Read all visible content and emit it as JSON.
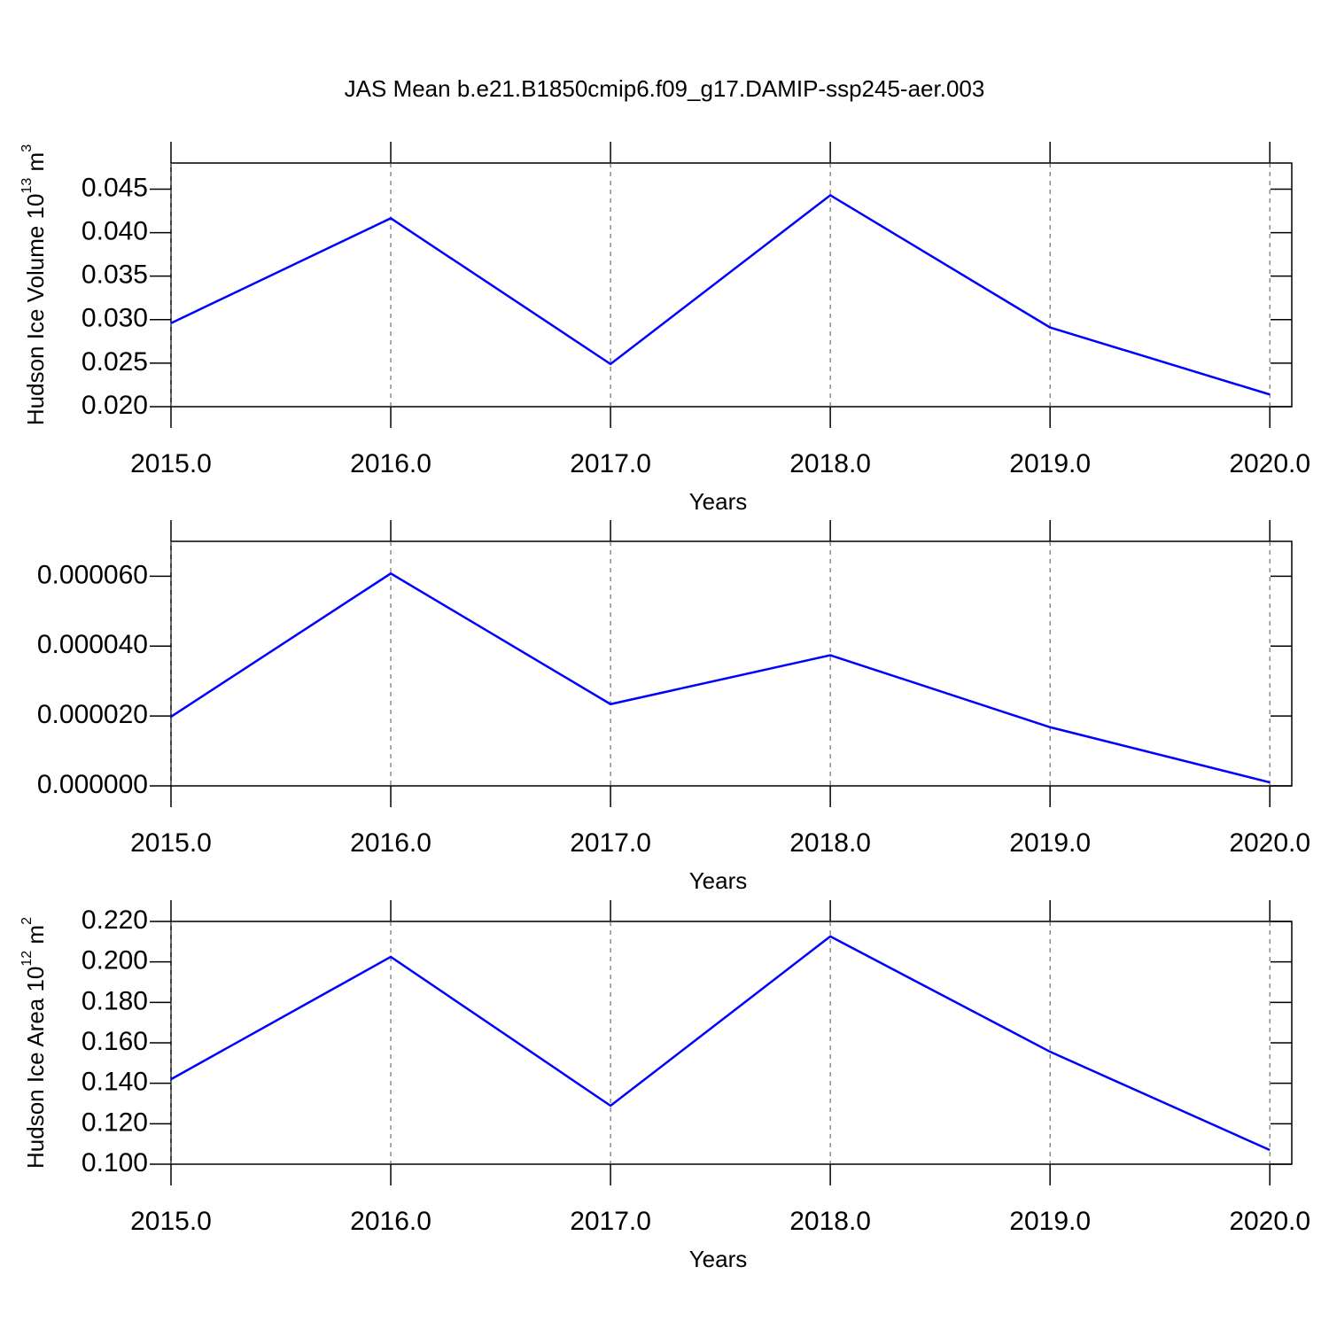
{
  "chart_data": [
    {
      "type": "line",
      "title": "JAS Mean b.e21.B1850cmip6.f09_g17.DAMIP-ssp245-aer.003",
      "y_label": {
        "text": "Hudson Ice Volume 10",
        "exponent": "13",
        "unit": " m",
        "unit_exponent": "3"
      },
      "x_label": "Years",
      "x": [
        2015,
        2016,
        2017,
        2018,
        2019,
        2020
      ],
      "values": [
        0.0296,
        0.04165,
        0.0249,
        0.0443,
        0.0291,
        0.0214
      ],
      "color": "#0000ff",
      "xlim": [
        2015,
        2020.1
      ],
      "xticks": [
        {
          "value": 2015,
          "label": "2015.0"
        },
        {
          "value": 2016,
          "label": "2016.0"
        },
        {
          "value": 2017,
          "label": "2017.0"
        },
        {
          "value": 2018,
          "label": "2018.0"
        },
        {
          "value": 2019,
          "label": "2019.0"
        },
        {
          "value": 2020,
          "label": "2020.0"
        }
      ],
      "ylim": [
        0.02,
        0.048
      ],
      "yticks": [
        {
          "value": 0.02,
          "label": "0.020"
        },
        0.025,
        {
          "value": 0.03,
          "label": "0.030"
        },
        0.035,
        {
          "value": 0.04,
          "label": "0.040"
        },
        0.045
      ],
      "xgrid": true
    },
    {
      "type": "line",
      "x_label": "Years",
      "x": [
        2015,
        2016,
        2017,
        2018,
        2019,
        2020
      ],
      "values": [
        1.98e-05,
        6.08e-05,
        2.34e-05,
        3.74e-05,
        1.68e-05,
        1e-06
      ],
      "color": "#0000ff",
      "xlim": [
        2015,
        2020.1
      ],
      "xticks": [
        {
          "value": 2015,
          "label": "2015.0"
        },
        {
          "value": 2016,
          "label": "2016.0"
        },
        {
          "value": 2017,
          "label": "2017.0"
        },
        {
          "value": 2018,
          "label": "2018.0"
        },
        {
          "value": 2019,
          "label": "2019.0"
        },
        {
          "value": 2020,
          "label": "2020.0"
        }
      ],
      "ylim": [
        0,
        7e-05
      ],
      "yticks": [
        {
          "value": 0,
          "label": "0.000000"
        },
        {
          "value": 2e-05,
          "label": "0.000020"
        },
        {
          "value": 4e-05,
          "label": "0.000040"
        },
        {
          "value": 6e-05,
          "label": "0.000060"
        }
      ],
      "xgrid": true
    },
    {
      "type": "line",
      "y_label": {
        "text": "Hudson Ice Area 10",
        "exponent": "12",
        "unit": " m",
        "unit_exponent": "2"
      },
      "x_label": "Years",
      "x": [
        2015,
        2016,
        2017,
        2018,
        2019,
        2020
      ],
      "values": [
        0.142,
        0.2025,
        0.1289,
        0.2126,
        0.1556,
        0.107
      ],
      "color": "#0000ff",
      "xlim": [
        2015,
        2020.1
      ],
      "xticks": [
        {
          "value": 2015,
          "label": "2015.0"
        },
        {
          "value": 2016,
          "label": "2016.0"
        },
        {
          "value": 2017,
          "label": "2017.0"
        },
        {
          "value": 2018,
          "label": "2018.0"
        },
        {
          "value": 2019,
          "label": "2019.0"
        },
        {
          "value": 2020,
          "label": "2020.0"
        }
      ],
      "ylim": [
        0.1,
        0.22
      ],
      "yticks": [
        {
          "value": 0.1,
          "label": "0.100"
        },
        {
          "value": 0.12,
          "label": "0.120"
        },
        {
          "value": 0.14,
          "label": "0.140"
        },
        {
          "value": 0.16,
          "label": "0.160"
        },
        {
          "value": 0.18,
          "label": "0.180"
        },
        {
          "value": 0.2,
          "label": "0.200"
        },
        {
          "value": 0.22,
          "label": "0.220"
        }
      ],
      "xgrid": true
    }
  ]
}
